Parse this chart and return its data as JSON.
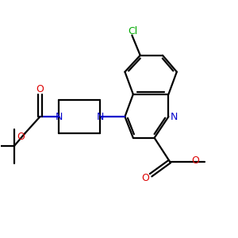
{
  "bg_color": "#ffffff",
  "bond_color": "#000000",
  "n_color": "#0000cc",
  "o_color": "#dd0000",
  "cl_color": "#00aa00",
  "line_width": 1.6,
  "figsize": [
    3.0,
    3.0
  ],
  "dpi": 100,
  "xlim": [
    0,
    10
  ],
  "ylim": [
    0,
    10
  ]
}
